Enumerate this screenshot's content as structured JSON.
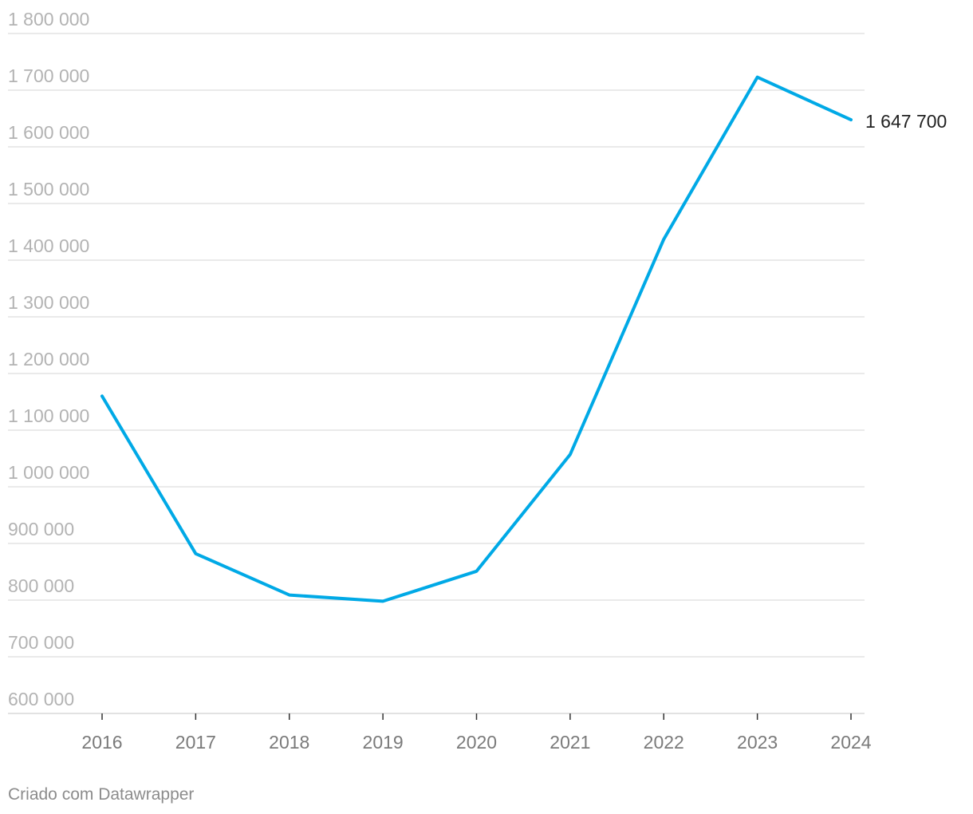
{
  "chart_data": {
    "type": "line",
    "x": [
      "2016",
      "2017",
      "2018",
      "2019",
      "2020",
      "2021",
      "2022",
      "2023",
      "2024"
    ],
    "series": [
      {
        "values": [
          1160000,
          882000,
          809000,
          798000,
          851000,
          1057000,
          1437000,
          1723000,
          1647700
        ],
        "color": "#00a9e6"
      }
    ],
    "ylim": [
      600000,
      1800000
    ],
    "y_ticks": [
      1800000,
      1700000,
      1600000,
      1500000,
      1400000,
      1300000,
      1200000,
      1100000,
      1000000,
      900000,
      800000,
      700000,
      600000
    ],
    "y_tick_labels": [
      "1 800 000",
      "1 700 000",
      "1 600 000",
      "1 500 000",
      "1 400 000",
      "1 300 000",
      "1 200 000",
      "1 100 000",
      "1 000 000",
      "900 000",
      "800 000",
      "700 000",
      "600 000"
    ],
    "end_label": "1 647 700",
    "grid": true,
    "legend": "none"
  },
  "footer": {
    "credit": "Criado com Datawrapper"
  }
}
